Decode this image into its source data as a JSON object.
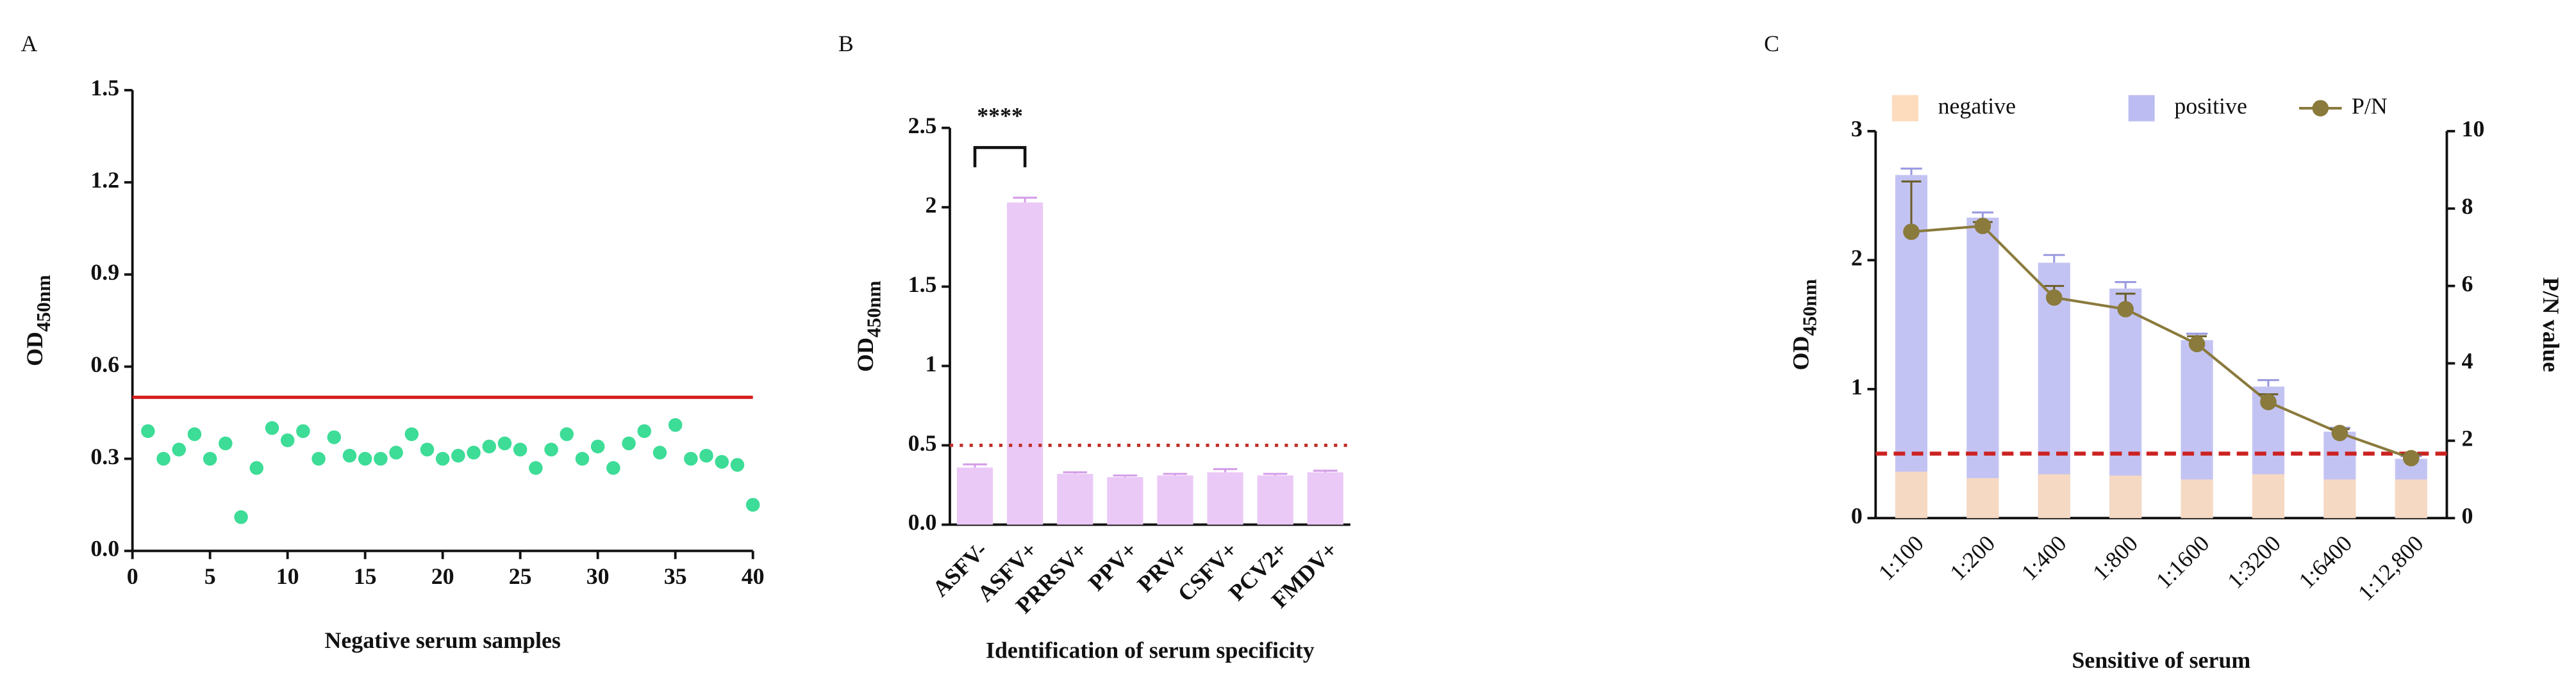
{
  "chart_data": [
    {
      "type": "scatter",
      "panel_label": "A",
      "x_label": "Negative serum samples",
      "y_label": "OD",
      "y_label_sub": "450nm",
      "x": [
        1,
        2,
        3,
        4,
        5,
        6,
        7,
        8,
        9,
        10,
        11,
        12,
        13,
        14,
        15,
        16,
        17,
        18,
        19,
        20,
        21,
        22,
        23,
        24,
        25,
        26,
        27,
        28,
        29,
        30,
        31,
        32,
        33,
        34,
        35,
        36,
        37,
        38,
        39,
        40
      ],
      "values": [
        0.39,
        0.3,
        0.33,
        0.38,
        0.3,
        0.35,
        0.11,
        0.27,
        0.4,
        0.36,
        0.39,
        0.3,
        0.37,
        0.31,
        0.3,
        0.3,
        0.32,
        0.38,
        0.33,
        0.3,
        0.31,
        0.32,
        0.34,
        0.35,
        0.33,
        0.27,
        0.33,
        0.38,
        0.3,
        0.34,
        0.27,
        0.35,
        0.39,
        0.32,
        0.41,
        0.3,
        0.31,
        0.29,
        0.28,
        0.15
      ],
      "color": "#3ddc97",
      "threshold": 0.5,
      "threshold_color": "#d62020",
      "xlim": [
        0,
        40
      ],
      "xticks": [
        0,
        5,
        10,
        15,
        20,
        25,
        30,
        35,
        40
      ],
      "ylim": [
        0,
        1.5
      ],
      "yticks": [
        {
          "value": 0,
          "label": "0.0"
        },
        0.3,
        0.6,
        0.9,
        1.2,
        1.5
      ]
    },
    {
      "type": "bar",
      "panel_label": "B",
      "x_label": "Identification of serum specificity",
      "y_label": "OD",
      "y_label_sub": "450nm",
      "categories": [
        "ASFV-",
        "ASFV+",
        "PRRSV+",
        "PPV+",
        "PRV+",
        "CSFV+",
        "PCV2+",
        "FMDV+"
      ],
      "values": [
        0.36,
        2.03,
        0.32,
        0.3,
        0.31,
        0.33,
        0.31,
        0.33
      ],
      "errors": [
        0.02,
        0.03,
        0.01,
        0.01,
        0.01,
        0.02,
        0.01,
        0.01
      ],
      "color": "#ebc9f7",
      "annotation": "****",
      "threshold": 0.5,
      "threshold_color": "#c0302a",
      "ylim": [
        0,
        2.5
      ],
      "yticks": [
        {
          "value": 0,
          "label": "0.0"
        },
        0.5,
        1.0,
        1.5,
        2.0,
        2.5
      ]
    },
    {
      "type": "bar_line",
      "panel_label": "C",
      "x_label": "Sensitive of serum",
      "y_label": "OD",
      "y_label_sub": "450nm",
      "y2_label": "P/N value",
      "categories": [
        "1:100",
        "1:200",
        "1:400",
        "1:800",
        "1:1600",
        "1:3200",
        "1:6400",
        "1:12,800"
      ],
      "series": [
        {
          "name": "negative",
          "color": "#fcdcbd",
          "values": [
            0.36,
            0.31,
            0.34,
            0.33,
            0.3,
            0.34,
            0.3,
            0.3
          ]
        },
        {
          "name": "positive",
          "color": "#bcbcf2",
          "values": [
            2.66,
            2.33,
            1.98,
            1.78,
            1.38,
            1.02,
            0.67,
            0.46
          ],
          "errors": [
            0.05,
            0.04,
            0.06,
            0.05,
            0.05,
            0.05,
            0.03,
            0.02
          ]
        },
        {
          "name": "P/N",
          "color": "#8a7a3c",
          "axis": "y2",
          "values": [
            7.4,
            7.55,
            5.7,
            5.4,
            4.5,
            3.0,
            2.2,
            1.55
          ],
          "errors": [
            1.3,
            0.1,
            0.3,
            0.4,
            0.2,
            0.2,
            0.1,
            0.1
          ]
        }
      ],
      "threshold": 0.5,
      "threshold_color": "#cc2222",
      "ylim": [
        0,
        3
      ],
      "yticks": [
        0,
        1,
        2,
        3
      ],
      "y2lim": [
        0,
        10
      ],
      "y2ticks": [
        0,
        2,
        4,
        6,
        8,
        10
      ]
    }
  ]
}
